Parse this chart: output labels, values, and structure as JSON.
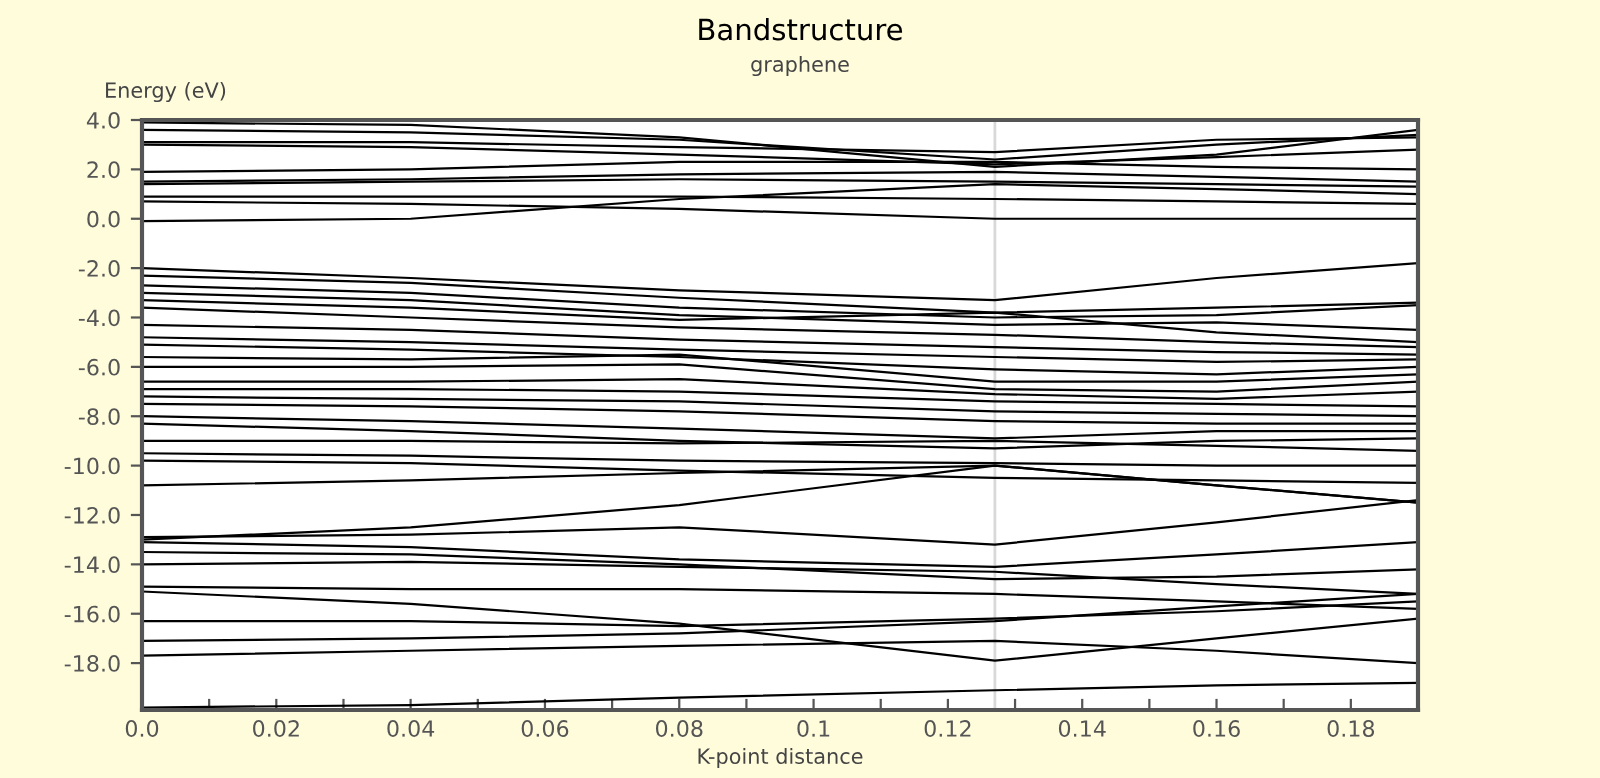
{
  "chart_data": {
    "type": "line",
    "title": "Bandstructure",
    "subtitle": "graphene",
    "xlabel": "K-point distance",
    "ylabel": "Energy (eV)",
    "x": [
      0,
      0.04,
      0.08,
      0.127,
      0.16,
      0.19
    ],
    "xlim": [
      0,
      0.19
    ],
    "ylim": [
      -19.9,
      4
    ],
    "xticks": [
      {
        "value": 0,
        "label": "0.0"
      },
      {
        "value": 0.01,
        "label": null
      },
      0.02,
      {
        "value": 0.03,
        "label": null
      },
      0.04,
      {
        "value": 0.05,
        "label": null
      },
      0.06,
      {
        "value": 0.07,
        "label": null
      },
      0.08,
      {
        "value": 0.09,
        "label": null
      },
      0.1,
      {
        "value": 0.11,
        "label": null
      },
      0.12,
      {
        "value": 0.13,
        "label": null
      },
      0.14,
      {
        "value": 0.15,
        "label": null
      },
      0.16,
      {
        "value": 0.17,
        "label": null
      },
      0.18,
      {
        "value": 0.19,
        "label": null
      }
    ],
    "yticks": [
      {
        "value": 4,
        "label": "4.0"
      },
      {
        "value": 2,
        "label": "2.0"
      },
      {
        "value": 0,
        "label": "0.0"
      },
      {
        "value": -2,
        "label": "-2.0"
      },
      {
        "value": -4,
        "label": "-4.0"
      },
      {
        "value": -6,
        "label": "-6.0"
      },
      {
        "value": -8,
        "label": "-8.0"
      },
      {
        "value": -10,
        "label": "-10.0"
      },
      {
        "value": -12,
        "label": "-12.0"
      },
      {
        "value": -14,
        "label": "-14.0"
      },
      {
        "value": -16,
        "label": "-16.0"
      },
      {
        "value": -18,
        "label": "-18.0"
      }
    ],
    "grid": false,
    "legend": false,
    "marker": "none",
    "line_style": "solid",
    "ref_lines": [
      {
        "axis": "x",
        "value": 0.127,
        "color": "#d8d8d8"
      }
    ],
    "series": [
      {
        "color": "#000000",
        "values": [
          3.9,
          3.8,
          3.3,
          2.1,
          2.6,
          3.6
        ]
      },
      {
        "color": "#000000",
        "values": [
          3.6,
          3.5,
          3.2,
          2.4,
          3.0,
          3.4
        ]
      },
      {
        "color": "#000000",
        "values": [
          3.1,
          3.1,
          2.9,
          2.7,
          3.2,
          3.3
        ]
      },
      {
        "color": "#000000",
        "values": [
          3.0,
          2.9,
          2.6,
          2.2,
          2.5,
          2.8
        ]
      },
      {
        "color": "#000000",
        "values": [
          1.9,
          2.0,
          2.3,
          2.3,
          2.1,
          2.0
        ]
      },
      {
        "color": "#000000",
        "values": [
          1.5,
          1.6,
          1.8,
          1.9,
          1.7,
          1.5
        ]
      },
      {
        "color": "#000000",
        "values": [
          1.4,
          1.5,
          1.6,
          1.5,
          1.4,
          1.3
        ]
      },
      {
        "color": "#000000",
        "values": [
          0.9,
          0.9,
          0.9,
          0.8,
          0.7,
          0.6
        ]
      },
      {
        "color": "#000000",
        "values": [
          -0.1,
          0.0,
          0.8,
          1.4,
          1.2,
          1.0
        ]
      },
      {
        "color": "#000000",
        "values": [
          0.7,
          0.6,
          0.4,
          0.0,
          0.0,
          0.0
        ]
      },
      {
        "color": "#000000",
        "values": [
          -2.0,
          -2.4,
          -2.9,
          -3.3,
          -2.4,
          -1.8
        ]
      },
      {
        "color": "#000000",
        "values": [
          -2.3,
          -2.6,
          -3.2,
          -3.8,
          -3.6,
          -3.4
        ]
      },
      {
        "color": "#000000",
        "values": [
          -2.7,
          -3.0,
          -3.6,
          -4.0,
          -3.9,
          -3.5
        ]
      },
      {
        "color": "#000000",
        "values": [
          -3.0,
          -3.3,
          -3.9,
          -4.3,
          -4.2,
          -4.5
        ]
      },
      {
        "color": "#000000",
        "values": [
          -3.3,
          -3.6,
          -4.1,
          -3.8,
          -4.6,
          -5.0
        ]
      },
      {
        "color": "#000000",
        "values": [
          -3.6,
          -4.0,
          -4.4,
          -4.7,
          -5.0,
          -5.2
        ]
      },
      {
        "color": "#000000",
        "values": [
          -4.3,
          -4.5,
          -4.9,
          -5.2,
          -5.4,
          -5.5
        ]
      },
      {
        "color": "#000000",
        "values": [
          -4.8,
          -5.0,
          -5.3,
          -5.6,
          -5.8,
          -5.7
        ]
      },
      {
        "color": "#000000",
        "values": [
          -5.1,
          -5.3,
          -5.6,
          -6.1,
          -6.3,
          -6.0
        ]
      },
      {
        "color": "#000000",
        "values": [
          -5.6,
          -5.7,
          -5.5,
          -6.6,
          -6.6,
          -6.3
        ]
      },
      {
        "color": "#000000",
        "values": [
          -6.0,
          -6.0,
          -5.9,
          -6.9,
          -7.0,
          -6.6
        ]
      },
      {
        "color": "#000000",
        "values": [
          -6.6,
          -6.6,
          -6.5,
          -7.1,
          -7.3,
          -7.0
        ]
      },
      {
        "color": "#000000",
        "values": [
          -6.9,
          -6.9,
          -7.0,
          -7.4,
          -7.5,
          -7.6
        ]
      },
      {
        "color": "#000000",
        "values": [
          -7.2,
          -7.3,
          -7.4,
          -7.8,
          -7.9,
          -8.0
        ]
      },
      {
        "color": "#000000",
        "values": [
          -7.5,
          -7.6,
          -7.8,
          -8.2,
          -8.3,
          -8.3
        ]
      },
      {
        "color": "#000000",
        "values": [
          -8.0,
          -8.2,
          -8.5,
          -8.9,
          -8.6,
          -8.6
        ]
      },
      {
        "color": "#000000",
        "values": [
          -8.3,
          -8.6,
          -9.0,
          -9.3,
          -9.0,
          -8.9
        ]
      },
      {
        "color": "#000000",
        "values": [
          -9.0,
          -9.0,
          -9.1,
          -9.0,
          -9.2,
          -9.4
        ]
      },
      {
        "color": "#000000",
        "values": [
          -9.5,
          -9.6,
          -9.8,
          -9.9,
          -10.0,
          -10.0
        ]
      },
      {
        "color": "#000000",
        "values": [
          -9.8,
          -9.9,
          -10.2,
          -10.5,
          -10.6,
          -10.7
        ]
      },
      {
        "color": "#000000",
        "values": [
          -10.8,
          -10.6,
          -10.3,
          -10.0,
          -10.8,
          -11.5
        ]
      },
      {
        "color": "#000000",
        "values": [
          -13.0,
          -12.5,
          -11.6,
          -10.0,
          -10.8,
          -11.5
        ]
      },
      {
        "color": "#000000",
        "values": [
          -12.9,
          -12.8,
          -12.5,
          -13.2,
          -12.3,
          -11.4
        ]
      },
      {
        "color": "#000000",
        "values": [
          -13.1,
          -13.3,
          -13.8,
          -14.1,
          -13.6,
          -13.1
        ]
      },
      {
        "color": "#000000",
        "values": [
          -13.5,
          -13.6,
          -14.0,
          -14.6,
          -14.5,
          -14.2
        ]
      },
      {
        "color": "#000000",
        "values": [
          -14.0,
          -13.9,
          -14.1,
          -14.3,
          -14.8,
          -15.2
        ]
      },
      {
        "color": "#000000",
        "values": [
          -14.9,
          -15.0,
          -15.0,
          -15.2,
          -15.5,
          -15.8
        ]
      },
      {
        "color": "#000000",
        "values": [
          -15.1,
          -15.6,
          -16.4,
          -17.9,
          -17.0,
          -16.2
        ]
      },
      {
        "color": "#000000",
        "values": [
          -16.3,
          -16.3,
          -16.5,
          -16.2,
          -15.9,
          -15.5
        ]
      },
      {
        "color": "#000000",
        "values": [
          -17.1,
          -17.0,
          -16.8,
          -16.3,
          -15.7,
          -15.2
        ]
      },
      {
        "color": "#000000",
        "values": [
          -17.7,
          -17.5,
          -17.3,
          -17.1,
          -17.5,
          -18.0
        ]
      },
      {
        "color": "#000000",
        "values": [
          -19.8,
          -19.7,
          -19.4,
          -19.1,
          -18.9,
          -18.8
        ]
      }
    ]
  }
}
